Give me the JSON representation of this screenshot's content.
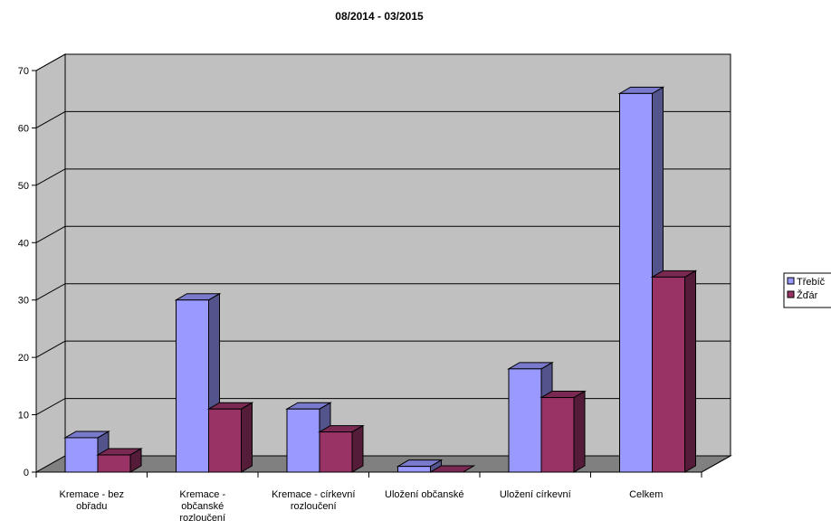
{
  "chart_data": {
    "type": "bar",
    "title": "08/2014 - 03/2015",
    "categories": [
      [
        "Kremace - bez",
        "obřadu"
      ],
      [
        "Kremace -",
        "občanské",
        "rozloučení"
      ],
      [
        "Kremace - církevní",
        "rozloučení"
      ],
      [
        "Uložení občanské"
      ],
      [
        "Uložení církevní"
      ],
      [
        "Celkem"
      ]
    ],
    "series": [
      {
        "name": "Třebíč",
        "values": [
          6,
          30,
          11,
          1,
          18,
          66
        ],
        "color": "#9999ff"
      },
      {
        "name": "Žďár",
        "values": [
          3,
          11,
          7,
          0,
          13,
          34
        ],
        "color": "#993366"
      }
    ],
    "ylim": [
      0,
      70
    ],
    "yticks": [
      0,
      10,
      20,
      30,
      40,
      50,
      60,
      70
    ],
    "grid": true,
    "legend": "right",
    "three_d": true,
    "wall_color": "#c0c0c0",
    "floor_color": "#808080"
  }
}
